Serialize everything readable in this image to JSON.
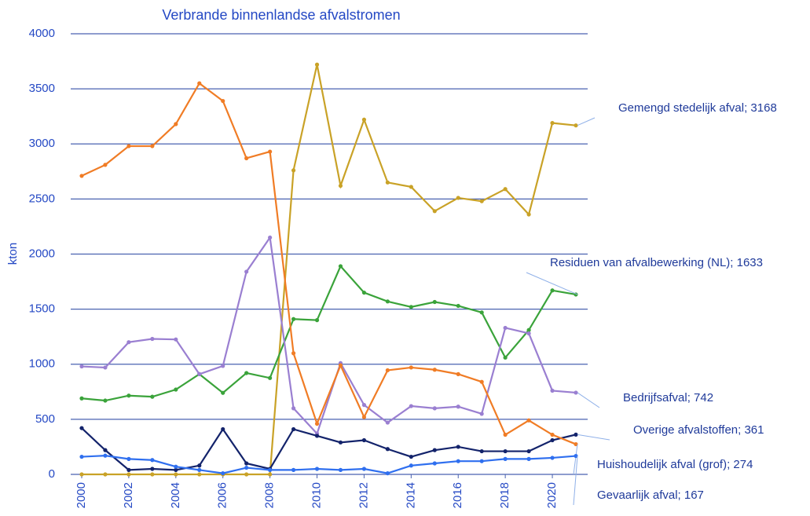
{
  "chart_data": {
    "type": "line",
    "title": "Verbrande binnenlandse afvalstromen",
    "y_label": "kton",
    "x": [
      2000,
      2001,
      2002,
      2003,
      2004,
      2005,
      2006,
      2007,
      2008,
      2009,
      2010,
      2011,
      2012,
      2013,
      2014,
      2015,
      2016,
      2017,
      2018,
      2019,
      2020,
      2021
    ],
    "xlim": [
      2000,
      2021
    ],
    "xticks": [
      2000,
      2002,
      2004,
      2006,
      2008,
      2010,
      2012,
      2014,
      2016,
      2018,
      2020
    ],
    "ylim": [
      0,
      4000
    ],
    "yticks": [
      0,
      500,
      1000,
      1500,
      2000,
      2500,
      3000,
      3500,
      4000
    ],
    "grid": true,
    "series": [
      {
        "label": "Gemengd stedelijk afval; 3168",
        "color": "#c9a227",
        "values": [
          0,
          0,
          0,
          0,
          0,
          0,
          0,
          0,
          0,
          2760,
          3720,
          2620,
          3220,
          2650,
          2610,
          2390,
          2510,
          2480,
          2590,
          2360,
          3190,
          3168
        ]
      },
      {
        "label": "Residuen van afvalbewerking (NL); 1633",
        "color": "#3aa33a",
        "values": [
          690,
          670,
          715,
          705,
          770,
          910,
          740,
          920,
          875,
          1410,
          1400,
          1890,
          1650,
          1570,
          1520,
          1565,
          1530,
          1470,
          1060,
          1310,
          1670,
          1633
        ]
      },
      {
        "label": "Bedrijfsafval; 742",
        "color": "#9a7fd1",
        "values": [
          980,
          970,
          1200,
          1230,
          1225,
          910,
          985,
          1840,
          2150,
          600,
          370,
          1010,
          630,
          470,
          620,
          600,
          615,
          550,
          1330,
          1280,
          760,
          742
        ]
      },
      {
        "label": "Overige afvalstoffen; 361",
        "color": "#13236b",
        "values": [
          420,
          220,
          40,
          50,
          40,
          80,
          410,
          100,
          50,
          410,
          350,
          290,
          310,
          230,
          160,
          220,
          250,
          210,
          210,
          210,
          310,
          361
        ]
      },
      {
        "label": "Huishoudelijk afval (grof); 274",
        "color": "#f07c25",
        "values": [
          2710,
          2810,
          2980,
          2980,
          3180,
          3550,
          3390,
          2870,
          2930,
          1100,
          460,
          990,
          520,
          945,
          970,
          950,
          910,
          840,
          360,
          490,
          360,
          274
        ]
      },
      {
        "label": "Gevaarlijk afval; 167",
        "color": "#2f6fef",
        "values": [
          160,
          170,
          140,
          130,
          70,
          40,
          10,
          60,
          40,
          40,
          50,
          40,
          50,
          10,
          80,
          100,
          120,
          120,
          140,
          140,
          150,
          167
        ]
      }
    ]
  }
}
